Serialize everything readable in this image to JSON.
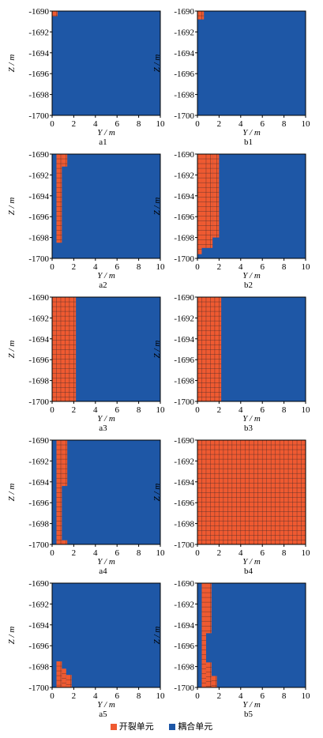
{
  "chart_data": {
    "type": "heatmap",
    "colors": {
      "cracked": "#ef5a31",
      "coupled": "#1e57a6",
      "grid": "#3a2a2a"
    },
    "x_axis": {
      "label_var": "Y",
      "label_unit": "m",
      "range": [
        0,
        10
      ],
      "ticks": [
        "0",
        "2",
        "4",
        "6",
        "8",
        "10"
      ]
    },
    "y_axis": {
      "label_var": "Z",
      "label_unit": "m",
      "range": [
        -1700,
        -1690
      ],
      "ticks": [
        "-1690",
        "-1692",
        "-1694",
        "-1696",
        "-1698",
        "-1700"
      ]
    },
    "legend": {
      "placement": "bottom-center",
      "items": [
        {
          "label": "开裂单元",
          "color": "#ef5a31"
        },
        {
          "label": "耦合单元",
          "color": "#1e57a6"
        }
      ]
    },
    "panels": [
      {
        "label": "a1",
        "cracked_regions": [
          {
            "y": [
              0.0,
              0.5
            ],
            "z": [
              -1690.5,
              -1690.0
            ]
          }
        ]
      },
      {
        "label": "b1",
        "cracked_regions": [
          {
            "y": [
              0.0,
              0.6
            ],
            "z": [
              -1690.8,
              -1690.0
            ]
          }
        ]
      },
      {
        "label": "a2",
        "cracked_regions": [
          {
            "y": [
              0.4,
              0.9
            ],
            "z": [
              -1698.5,
              -1690.0
            ]
          },
          {
            "y": [
              0.9,
              1.4
            ],
            "z": [
              -1691.2,
              -1690.0
            ]
          }
        ]
      },
      {
        "label": "b2",
        "cracked_regions": [
          {
            "y": [
              0.0,
              0.4
            ],
            "z": [
              -1699.6,
              -1690.0
            ]
          },
          {
            "y": [
              0.4,
              1.4
            ],
            "z": [
              -1699.0,
              -1690.0
            ]
          },
          {
            "y": [
              1.4,
              2.0
            ],
            "z": [
              -1698.0,
              -1690.0
            ]
          }
        ]
      },
      {
        "label": "a3",
        "cracked_regions": [
          {
            "y": [
              0.0,
              2.2
            ],
            "z": [
              -1700.0,
              -1690.0
            ]
          }
        ]
      },
      {
        "label": "b3",
        "cracked_regions": [
          {
            "y": [
              0.0,
              2.2
            ],
            "z": [
              -1700.0,
              -1690.0
            ]
          }
        ]
      },
      {
        "label": "a4",
        "cracked_regions": [
          {
            "y": [
              0.4,
              0.9
            ],
            "z": [
              -1700.0,
              -1690.0
            ]
          },
          {
            "y": [
              0.9,
              1.4
            ],
            "z": [
              -1694.4,
              -1690.0
            ]
          },
          {
            "y": [
              0.9,
              1.4
            ],
            "z": [
              -1700.0,
              -1699.6
            ]
          }
        ]
      },
      {
        "label": "b4",
        "cracked_regions": [
          {
            "y": [
              0.0,
              10.0
            ],
            "z": [
              -1700.0,
              -1690.0
            ]
          }
        ]
      },
      {
        "label": "a5",
        "cracked_regions": [
          {
            "y": [
              0.4,
              0.9
            ],
            "z": [
              -1700.0,
              -1697.5
            ]
          },
          {
            "y": [
              0.9,
              1.3
            ],
            "z": [
              -1700.0,
              -1698.2
            ]
          },
          {
            "y": [
              1.3,
              1.8
            ],
            "z": [
              -1700.0,
              -1698.8
            ]
          }
        ]
      },
      {
        "label": "b5",
        "cracked_regions": [
          {
            "y": [
              0.4,
              0.8
            ],
            "z": [
              -1700.0,
              -1690.0
            ]
          },
          {
            "y": [
              0.8,
              1.3
            ],
            "z": [
              -1694.8,
              -1690.0
            ]
          },
          {
            "y": [
              0.8,
              1.3
            ],
            "z": [
              -1700.0,
              -1697.6
            ]
          },
          {
            "y": [
              1.3,
              1.8
            ],
            "z": [
              -1700.0,
              -1698.9
            ]
          }
        ]
      }
    ]
  }
}
